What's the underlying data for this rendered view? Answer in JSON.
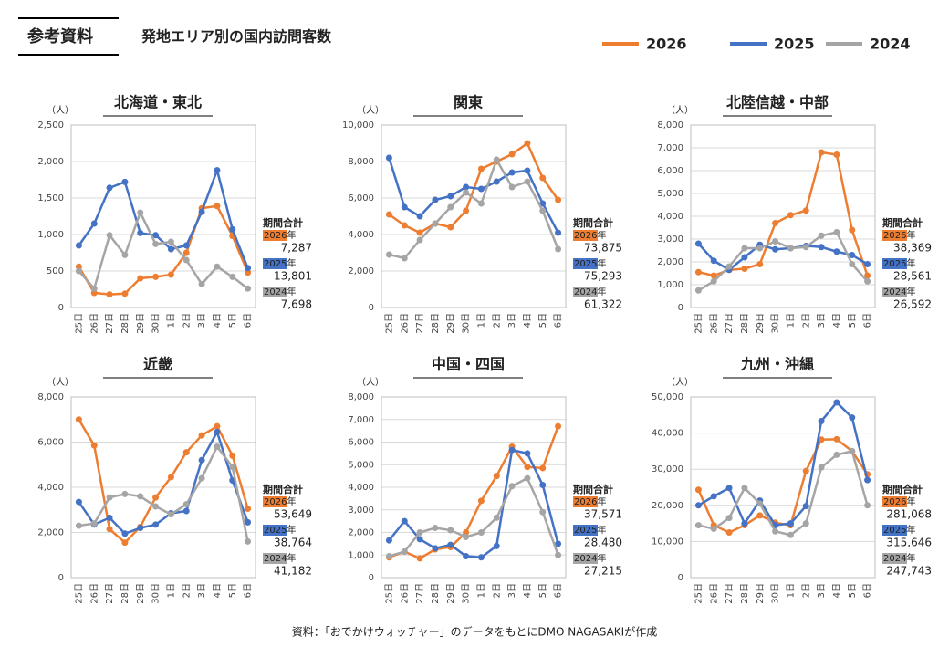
{
  "header": {
    "tag": "参考資料",
    "title": "発地エリア別の国内訪問客数"
  },
  "legend": [
    {
      "name": "2026",
      "color": "#ed7d31"
    },
    {
      "name": "2025",
      "color": "#4472c4"
    },
    {
      "name": "2024",
      "color": "#a5a5a5"
    }
  ],
  "source": "資料：「おでかけウォッチャー」のデータをもとにDMO NAGASAKIが作成",
  "chart_data": [
    {
      "type": "line",
      "title": "北海道・東北",
      "y_unit": "（人）",
      "categories": [
        "25日",
        "26日",
        "27日",
        "28日",
        "29日",
        "30日",
        "1日",
        "2日",
        "3日",
        "4日",
        "5日",
        "6日"
      ],
      "series": [
        {
          "values": [
            560,
            200,
            180,
            190,
            400,
            420,
            450,
            750,
            1360,
            1390,
            980,
            480
          ]
        },
        {
          "values": [
            850,
            1150,
            1640,
            1720,
            1020,
            990,
            800,
            850,
            1310,
            1880,
            1070,
            540
          ]
        },
        {
          "values": [
            500,
            260,
            990,
            720,
            1300,
            870,
            900,
            650,
            320,
            560,
            420,
            260
          ]
        }
      ],
      "ylim": [
        0,
        2500
      ],
      "yticks": [
        0,
        500,
        {
          "value": 1000,
          "label": "1,000"
        },
        {
          "value": 1500,
          "label": "1,500"
        },
        {
          "value": 2000,
          "label": "2,000"
        },
        {
          "value": 2500,
          "label": "2,500"
        }
      ],
      "total_title": "期間合計",
      "totals": [
        {
          "label": "2026年",
          "value": "7,287"
        },
        {
          "label": "2025年",
          "value": "13,801"
        },
        {
          "label": "2024年",
          "value": "7,698"
        }
      ]
    },
    {
      "type": "line",
      "title": "関東",
      "y_unit": "（人）",
      "categories": [
        "25日",
        "26日",
        "27日",
        "28日",
        "29日",
        "30日",
        "1日",
        "2日",
        "3日",
        "4日",
        "5日",
        "6日"
      ],
      "series": [
        {
          "values": [
            5100,
            4500,
            4100,
            4600,
            4400,
            5300,
            7600,
            8000,
            8400,
            9000,
            7100,
            5900
          ]
        },
        {
          "values": [
            8200,
            5500,
            5000,
            5900,
            6100,
            6600,
            6500,
            6900,
            7400,
            7500,
            5700,
            4100
          ]
        },
        {
          "values": [
            2900,
            2700,
            3700,
            4600,
            5500,
            6300,
            5700,
            8100,
            6600,
            6900,
            5300,
            3200
          ]
        }
      ],
      "ylim": [
        0,
        10000
      ],
      "yticks": [
        0,
        {
          "value": 2000,
          "label": "2,000"
        },
        {
          "value": 4000,
          "label": "4,000"
        },
        {
          "value": 6000,
          "label": "6,000"
        },
        {
          "value": 8000,
          "label": "8,000"
        },
        {
          "value": 10000,
          "label": "10,000"
        }
      ],
      "total_title": "期間合計",
      "totals": [
        {
          "label": "2026年",
          "value": "73,875"
        },
        {
          "label": "2025年",
          "value": "75,293"
        },
        {
          "label": "2024年",
          "value": "61,322"
        }
      ]
    },
    {
      "type": "line",
      "title": "北陸信越・中部",
      "y_unit": "（人）",
      "categories": [
        "25日",
        "26日",
        "27日",
        "28日",
        "29日",
        "30日",
        "1日",
        "2日",
        "3日",
        "4日",
        "5日",
        "6日"
      ],
      "series": [
        {
          "values": [
            1550,
            1400,
            1650,
            1700,
            1900,
            3700,
            4050,
            4250,
            6800,
            6700,
            3400,
            1400
          ]
        },
        {
          "values": [
            2800,
            2050,
            1650,
            2200,
            2750,
            2550,
            2600,
            2700,
            2650,
            2450,
            2300,
            1900
          ]
        },
        {
          "values": [
            750,
            1150,
            1800,
            2600,
            2600,
            2900,
            2600,
            2650,
            3150,
            3300,
            1900,
            1150
          ]
        }
      ],
      "ylim": [
        0,
        8000
      ],
      "yticks": [
        0,
        {
          "value": 1000,
          "label": "1,000"
        },
        {
          "value": 2000,
          "label": "2,000"
        },
        {
          "value": 3000,
          "label": "3,000"
        },
        {
          "value": 4000,
          "label": "4,000"
        },
        {
          "value": 5000,
          "label": "5,000"
        },
        {
          "value": 6000,
          "label": "6,000"
        },
        {
          "value": 7000,
          "label": "7,000"
        },
        {
          "value": 8000,
          "label": "8,000"
        }
      ],
      "total_title": "期間合計",
      "totals": [
        {
          "label": "2026年",
          "value": "38,369"
        },
        {
          "label": "2025年",
          "value": "28,561"
        },
        {
          "label": "2024年",
          "value": "26,592"
        }
      ]
    },
    {
      "type": "line",
      "title": "近畿",
      "y_unit": "（人）",
      "categories": [
        "25日",
        "26日",
        "27日",
        "28日",
        "29日",
        "30日",
        "1日",
        "2日",
        "3日",
        "4日",
        "5日",
        "6日"
      ],
      "series": [
        {
          "values": [
            7000,
            5850,
            2150,
            1550,
            2250,
            3550,
            4450,
            5550,
            6300,
            6700,
            5400,
            3050
          ]
        },
        {
          "values": [
            3350,
            2350,
            2650,
            1950,
            2200,
            2350,
            2850,
            2950,
            5200,
            6450,
            4300,
            2450
          ]
        },
        {
          "values": [
            2300,
            2400,
            3550,
            3700,
            3600,
            3150,
            2800,
            3250,
            4400,
            5800,
            4900,
            1600
          ]
        }
      ],
      "ylim": [
        0,
        8000
      ],
      "yticks": [
        0,
        {
          "value": 2000,
          "label": "2,000"
        },
        {
          "value": 4000,
          "label": "4,000"
        },
        {
          "value": 6000,
          "label": "6,000"
        },
        {
          "value": 8000,
          "label": "8,000"
        }
      ],
      "total_title": "期間合計",
      "totals": [
        {
          "label": "2026年",
          "value": "53,649"
        },
        {
          "label": "2025年",
          "value": "38,764"
        },
        {
          "label": "2024年",
          "value": "41,182"
        }
      ]
    },
    {
      "type": "line",
      "title": "中国・四国",
      "y_unit": "（人）",
      "categories": [
        "25日",
        "26日",
        "27日",
        "28日",
        "29日",
        "30日",
        "1日",
        "2日",
        "3日",
        "4日",
        "5日",
        "6日"
      ],
      "series": [
        {
          "values": [
            900,
            1150,
            850,
            1250,
            1350,
            2000,
            3400,
            4500,
            5800,
            4900,
            4850,
            6700
          ]
        },
        {
          "values": [
            1650,
            2500,
            1700,
            1300,
            1450,
            950,
            900,
            1400,
            5650,
            5500,
            4100,
            1500
          ]
        },
        {
          "values": [
            950,
            1150,
            2000,
            2200,
            2100,
            1800,
            2000,
            2650,
            4050,
            4400,
            2900,
            1000
          ]
        }
      ],
      "ylim": [
        0,
        8000
      ],
      "yticks": [
        0,
        {
          "value": 1000,
          "label": "1,000"
        },
        {
          "value": 2000,
          "label": "2,000"
        },
        {
          "value": 3000,
          "label": "3,000"
        },
        {
          "value": 4000,
          "label": "4,000"
        },
        {
          "value": 5000,
          "label": "5,000"
        },
        {
          "value": 6000,
          "label": "6,000"
        },
        {
          "value": 7000,
          "label": "7,000"
        },
        {
          "value": 8000,
          "label": "8,000"
        }
      ],
      "total_title": "期間合計",
      "totals": [
        {
          "label": "2026年",
          "value": "37,571"
        },
        {
          "label": "2025年",
          "value": "28,480"
        },
        {
          "label": "2024年",
          "value": "27,215"
        }
      ]
    },
    {
      "type": "line",
      "title": "九州・沖縄",
      "y_unit": "（人）",
      "categories": [
        "25日",
        "26日",
        "27日",
        "28日",
        "29日",
        "30日",
        "1日",
        "2日",
        "3日",
        "4日",
        "5日",
        "6日"
      ],
      "series": [
        {
          "values": [
            24300,
            14500,
            12500,
            14500,
            17200,
            15200,
            14500,
            29500,
            38200,
            38300,
            35000,
            28600
          ]
        },
        {
          "values": [
            20000,
            22500,
            24800,
            15000,
            21300,
            14500,
            15000,
            19800,
            43300,
            48500,
            44300,
            27000
          ]
        },
        {
          "values": [
            14500,
            13500,
            16500,
            24800,
            20500,
            12800,
            11800,
            15000,
            30500,
            34000,
            35000,
            20000
          ]
        }
      ],
      "ylim": [
        0,
        50000
      ],
      "yticks": [
        0,
        {
          "value": 10000,
          "label": "10,000"
        },
        {
          "value": 20000,
          "label": "20,000"
        },
        {
          "value": 30000,
          "label": "30,000"
        },
        {
          "value": 40000,
          "label": "40,000"
        },
        {
          "value": 50000,
          "label": "50,000"
        }
      ],
      "total_title": "期間合計",
      "totals": [
        {
          "label": "2026年",
          "value": "281,068"
        },
        {
          "label": "2025年",
          "value": "315,646"
        },
        {
          "label": "2024年",
          "value": "247,743"
        }
      ]
    }
  ]
}
